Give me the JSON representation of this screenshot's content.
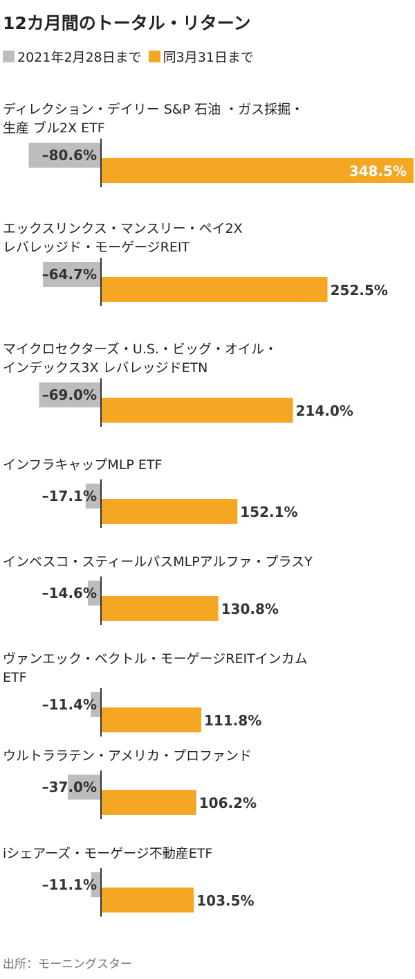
{
  "title": "12カ月間のトータル・リターン",
  "source": "出所：モーニングスター",
  "colors": {
    "before": "#bdbdbd",
    "after": "#f5a623",
    "axis": "#333333"
  },
  "chart_data": {
    "type": "bar",
    "title": "12カ月間のトータル・リターン",
    "unit": "%",
    "orientation": "horizontal",
    "series": [
      {
        "name": "2021年2月28日まで",
        "values": [
          -80.6,
          -64.7,
          -69.0,
          -17.1,
          -14.6,
          -11.4,
          -37.0,
          -11.1
        ]
      },
      {
        "name": "同3月31日まで",
        "values": [
          348.5,
          252.5,
          214.0,
          152.1,
          130.8,
          111.8,
          106.2,
          103.5
        ]
      }
    ],
    "categories": [
      [
        "ディレクション・デイリー S&P 石油 ・ガス採掘・",
        "生産 ブル2X ETF"
      ],
      [
        "エックスリンクス・マンスリー・ペイ2X",
        "レバレッジド・モーゲージREIT"
      ],
      [
        "マイクロセクターズ・U.S.・ビッグ・オイル・",
        "インデックス3X レバレッジドETN"
      ],
      [
        "インフラキャップMLP ETF"
      ],
      [
        "インベスコ・スティールパスMLPアルファ・プラスY"
      ],
      [
        "ヴァンエック・ベクトル・モーゲージREITインカム",
        "ETF"
      ],
      [
        "ウルトララテン・アメリカ・プロファンド"
      ],
      [
        "iシェアーズ・モーゲージ不動産ETF"
      ]
    ],
    "labels_before": [
      "–80.6%",
      "–64.7%",
      "–69.0%",
      "–17.1%",
      "–14.6%",
      "–11.4%",
      "–37.0%",
      "–11.1%"
    ],
    "labels_after": [
      "348.5%",
      "252.5%",
      "214.0%",
      "152.1%",
      "130.8%",
      "111.8%",
      "106.2%",
      "103.5%"
    ]
  }
}
